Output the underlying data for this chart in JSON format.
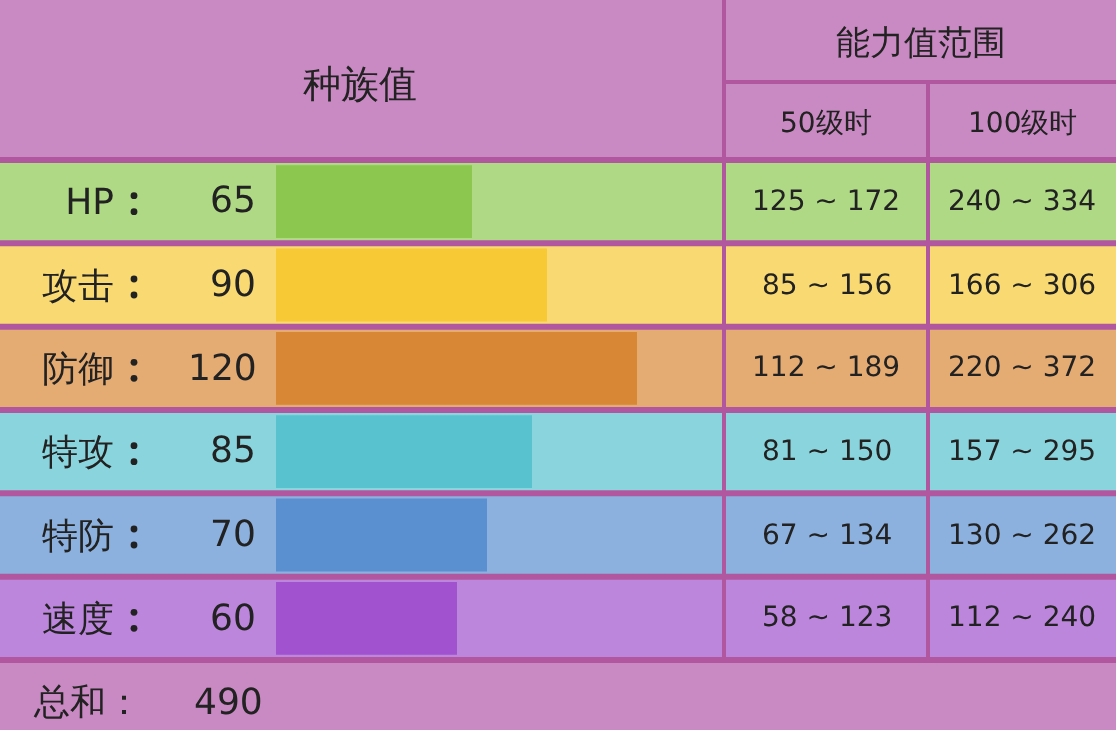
{
  "chart_data": {
    "type": "bar",
    "orientation": "horizontal",
    "title": "种族值",
    "categories": [
      "HP",
      "攻击",
      "防御",
      "特攻",
      "特防",
      "速度"
    ],
    "values": [
      65,
      90,
      120,
      85,
      70,
      60
    ],
    "colors": [
      "#8cc84f",
      "#f7c935",
      "#d88735",
      "#58c3cf",
      "#5a8fd0",
      "#a152cf"
    ],
    "data_labels": true,
    "grid": false,
    "annotations": [
      "能力值范围",
      "50级时",
      "100级时",
      "125 ~ 172",
      "240 ~ 334",
      "85 ~ 156",
      "166 ~ 306",
      "112 ~ 189",
      "220 ~ 372",
      "81 ~ 150",
      "157 ~ 295",
      "67 ~ 134",
      "130 ~ 262",
      "58 ~ 123",
      "112 ~ 240",
      "总和：",
      "490"
    ]
  }
}
